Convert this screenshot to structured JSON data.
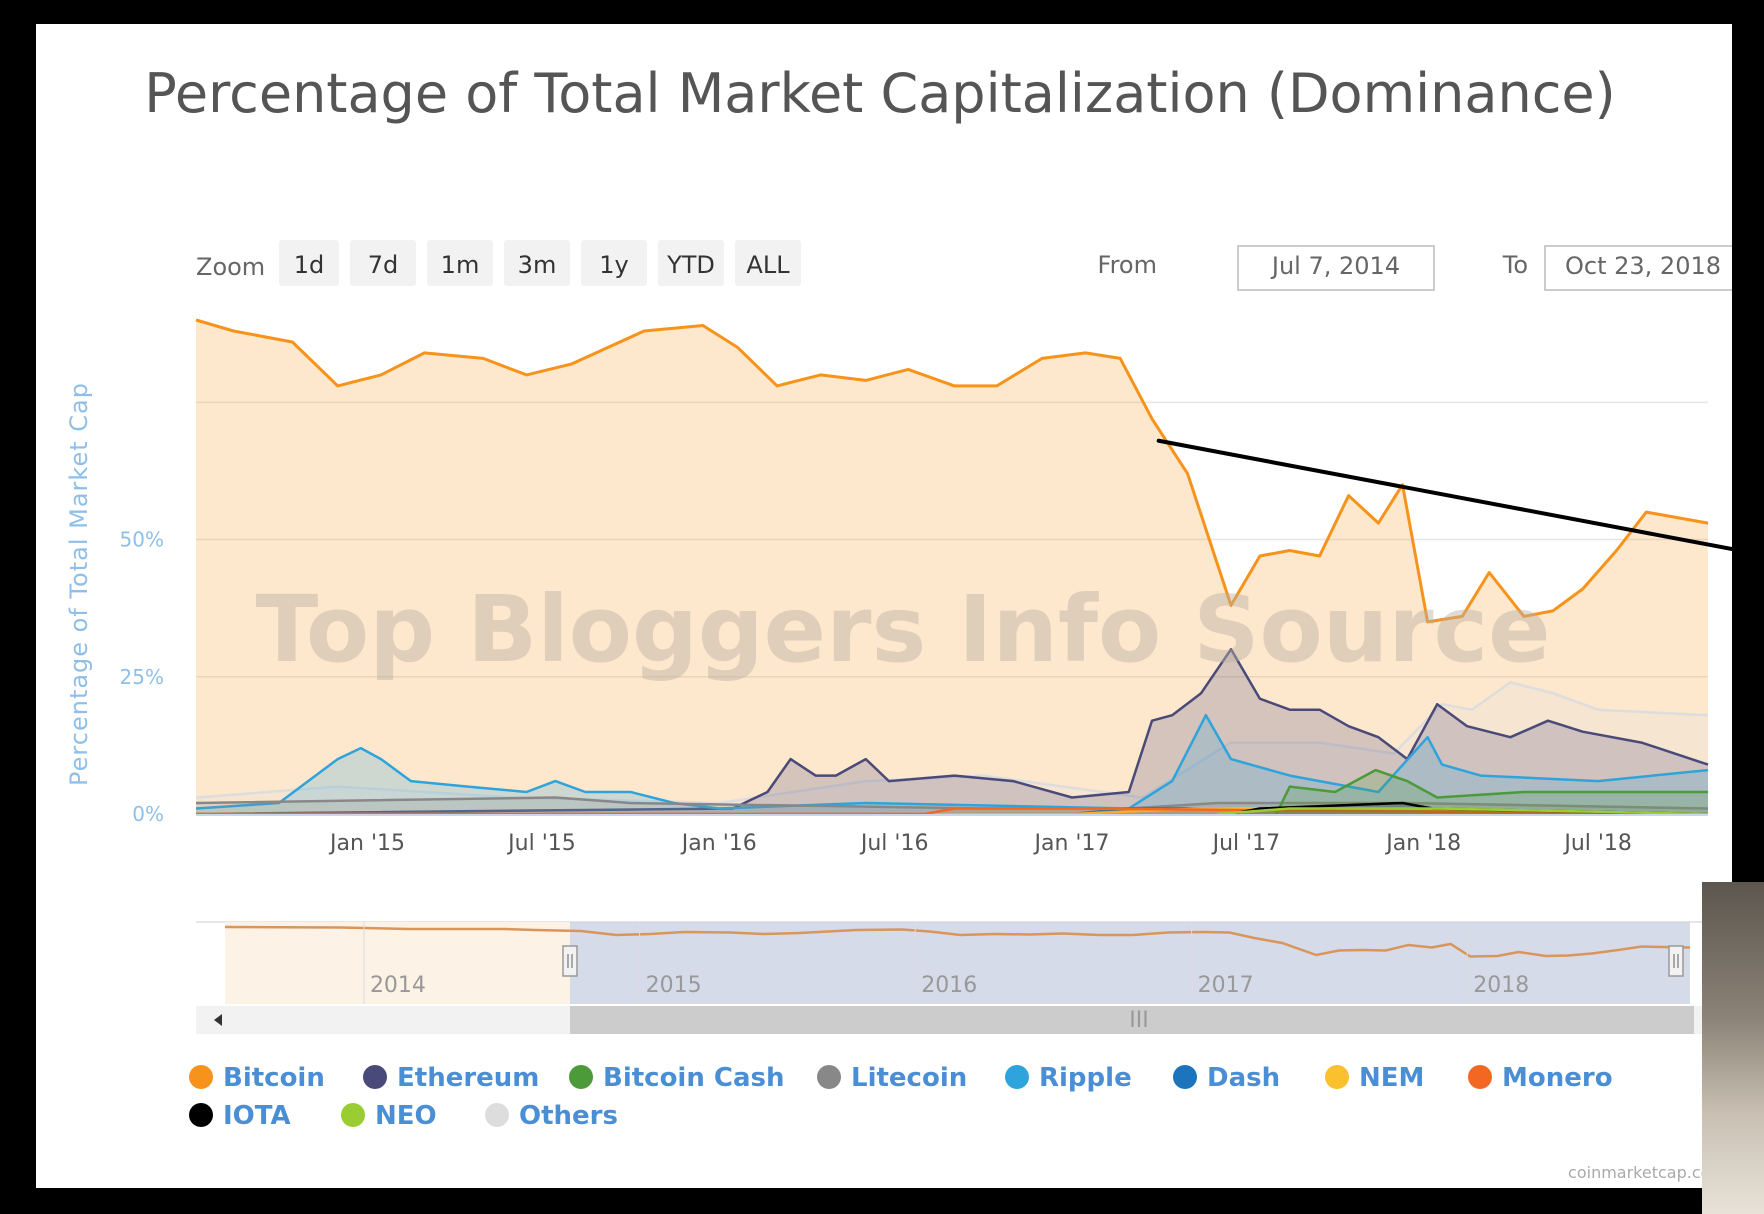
{
  "chart_data": {
    "type": "area",
    "title": "Percentage of Total Market Capitalization (Dominance)",
    "ylabel": "Percentage of Total Market Cap",
    "yticks": [
      "0%",
      "25%",
      "50%"
    ],
    "ylim": [
      0,
      90
    ],
    "xlim": [
      "2014-07-07",
      "2018-10-23"
    ],
    "xticks": [
      {
        "label": "Jan '15",
        "date": "2015-01-01"
      },
      {
        "label": "Jul '15",
        "date": "2015-07-01"
      },
      {
        "label": "Jan '16",
        "date": "2016-01-01"
      },
      {
        "label": "Jul '16",
        "date": "2016-07-01"
      },
      {
        "label": "Jan '17",
        "date": "2017-01-01"
      },
      {
        "label": "Jul '17",
        "date": "2017-07-01"
      },
      {
        "label": "Jan '18",
        "date": "2018-01-01"
      },
      {
        "label": "Jul '18",
        "date": "2018-07-01"
      }
    ],
    "grid": true,
    "legend_position": "bottom",
    "series": [
      {
        "name": "Bitcoin",
        "color": "#f7931a",
        "points": [
          [
            "2014-07-07",
            90
          ],
          [
            "2014-08-15",
            88
          ],
          [
            "2014-10-15",
            86
          ],
          [
            "2014-12-01",
            78
          ],
          [
            "2015-01-15",
            80
          ],
          [
            "2015-03-01",
            84
          ],
          [
            "2015-05-01",
            83
          ],
          [
            "2015-06-15",
            80
          ],
          [
            "2015-08-01",
            82
          ],
          [
            "2015-10-15",
            88
          ],
          [
            "2015-12-15",
            89
          ],
          [
            "2016-01-20",
            85
          ],
          [
            "2016-03-01",
            78
          ],
          [
            "2016-04-15",
            80
          ],
          [
            "2016-06-01",
            79
          ],
          [
            "2016-07-15",
            81
          ],
          [
            "2016-09-01",
            78
          ],
          [
            "2016-10-15",
            78
          ],
          [
            "2016-12-01",
            83
          ],
          [
            "2017-01-15",
            84
          ],
          [
            "2017-02-20",
            83
          ],
          [
            "2017-03-25",
            72
          ],
          [
            "2017-05-01",
            62
          ],
          [
            "2017-06-15",
            38
          ],
          [
            "2017-07-15",
            47
          ],
          [
            "2017-08-15",
            48
          ],
          [
            "2017-09-15",
            47
          ],
          [
            "2017-10-15",
            58
          ],
          [
            "2017-11-15",
            53
          ],
          [
            "2017-12-10",
            60
          ],
          [
            "2018-01-05",
            35
          ],
          [
            "2018-02-10",
            36
          ],
          [
            "2018-03-10",
            44
          ],
          [
            "2018-04-15",
            36
          ],
          [
            "2018-05-15",
            37
          ],
          [
            "2018-06-15",
            41
          ],
          [
            "2018-07-20",
            48
          ],
          [
            "2018-08-20",
            55
          ],
          [
            "2018-10-23",
            53
          ]
        ]
      },
      {
        "name": "Ethereum",
        "color": "#4a4a7a",
        "points": [
          [
            "2014-07-07",
            0
          ],
          [
            "2016-01-15",
            1
          ],
          [
            "2016-02-20",
            4
          ],
          [
            "2016-03-15",
            10
          ],
          [
            "2016-04-10",
            7
          ],
          [
            "2016-05-01",
            7
          ],
          [
            "2016-06-01",
            10
          ],
          [
            "2016-06-25",
            6
          ],
          [
            "2016-09-01",
            7
          ],
          [
            "2016-11-01",
            6
          ],
          [
            "2017-01-01",
            3
          ],
          [
            "2017-03-01",
            4
          ],
          [
            "2017-03-25",
            17
          ],
          [
            "2017-04-15",
            18
          ],
          [
            "2017-05-15",
            22
          ],
          [
            "2017-06-15",
            30
          ],
          [
            "2017-07-15",
            21
          ],
          [
            "2017-08-15",
            19
          ],
          [
            "2017-09-15",
            19
          ],
          [
            "2017-10-15",
            16
          ],
          [
            "2017-11-15",
            14
          ],
          [
            "2017-12-15",
            10
          ],
          [
            "2018-01-15",
            20
          ],
          [
            "2018-02-15",
            16
          ],
          [
            "2018-04-01",
            14
          ],
          [
            "2018-05-10",
            17
          ],
          [
            "2018-06-15",
            15
          ],
          [
            "2018-08-15",
            13
          ],
          [
            "2018-10-23",
            9
          ]
        ]
      },
      {
        "name": "Bitcoin Cash",
        "color": "#4c9a3a",
        "points": [
          [
            "2017-08-01",
            0
          ],
          [
            "2017-08-15",
            5
          ],
          [
            "2017-10-01",
            4
          ],
          [
            "2017-11-12",
            8
          ],
          [
            "2017-12-15",
            6
          ],
          [
            "2018-01-15",
            3
          ],
          [
            "2018-04-15",
            4
          ],
          [
            "2018-10-23",
            4
          ]
        ]
      },
      {
        "name": "Litecoin",
        "color": "#888888",
        "points": [
          [
            "2014-07-07",
            2
          ],
          [
            "2015-07-15",
            3
          ],
          [
            "2015-10-01",
            2
          ],
          [
            "2016-10-01",
            1
          ],
          [
            "2017-03-01",
            1
          ],
          [
            "2017-06-01",
            2
          ],
          [
            "2017-12-15",
            2
          ],
          [
            "2018-10-23",
            1
          ]
        ]
      },
      {
        "name": "Ripple",
        "color": "#2fa3db",
        "points": [
          [
            "2014-07-07",
            1
          ],
          [
            "2014-10-01",
            2
          ],
          [
            "2014-12-01",
            10
          ],
          [
            "2014-12-25",
            12
          ],
          [
            "2015-01-15",
            10
          ],
          [
            "2015-02-15",
            6
          ],
          [
            "2015-04-15",
            5
          ],
          [
            "2015-06-15",
            4
          ],
          [
            "2015-07-15",
            6
          ],
          [
            "2015-08-15",
            4
          ],
          [
            "2015-10-01",
            4
          ],
          [
            "2015-11-15",
            2
          ],
          [
            "2016-01-01",
            1
          ],
          [
            "2016-06-01",
            2
          ],
          [
            "2017-03-01",
            1
          ],
          [
            "2017-04-15",
            6
          ],
          [
            "2017-05-20",
            18
          ],
          [
            "2017-06-15",
            10
          ],
          [
            "2017-08-15",
            7
          ],
          [
            "2017-11-15",
            4
          ],
          [
            "2018-01-05",
            14
          ],
          [
            "2018-01-20",
            9
          ],
          [
            "2018-03-01",
            7
          ],
          [
            "2018-07-01",
            6
          ],
          [
            "2018-10-23",
            8
          ]
        ]
      },
      {
        "name": "Dash",
        "color": "#1c75bc",
        "points": [
          [
            "2014-07-07",
            0
          ],
          [
            "2017-01-01",
            0
          ],
          [
            "2017-03-01",
            1
          ],
          [
            "2017-06-01",
            1
          ],
          [
            "2018-10-23",
            0
          ]
        ]
      },
      {
        "name": "NEM",
        "color": "#fbc02d",
        "points": [
          [
            "2014-07-07",
            0
          ],
          [
            "2017-01-01",
            0
          ],
          [
            "2017-05-15",
            1
          ],
          [
            "2017-09-01",
            1
          ],
          [
            "2018-10-23",
            0
          ]
        ]
      },
      {
        "name": "Monero",
        "color": "#f26822",
        "points": [
          [
            "2014-07-07",
            0
          ],
          [
            "2016-08-01",
            0
          ],
          [
            "2016-09-01",
            1
          ],
          [
            "2017-01-01",
            1
          ],
          [
            "2018-10-23",
            0
          ]
        ]
      },
      {
        "name": "IOTA",
        "color": "#000000",
        "points": [
          [
            "2017-06-15",
            0
          ],
          [
            "2017-07-15",
            1
          ],
          [
            "2017-12-10",
            2
          ],
          [
            "2018-01-10",
            1
          ],
          [
            "2018-10-23",
            0
          ]
        ]
      },
      {
        "name": "NEO",
        "color": "#9acd32",
        "points": [
          [
            "2017-06-01",
            0
          ],
          [
            "2017-08-15",
            1
          ],
          [
            "2018-01-15",
            1
          ],
          [
            "2018-10-23",
            0
          ]
        ]
      },
      {
        "name": "Others",
        "color": "#dddddd",
        "points": [
          [
            "2014-07-07",
            3
          ],
          [
            "2014-12-01",
            5
          ],
          [
            "2015-06-01",
            3
          ],
          [
            "2016-01-01",
            2
          ],
          [
            "2016-06-01",
            6
          ],
          [
            "2016-10-01",
            7
          ],
          [
            "2017-03-15",
            3
          ],
          [
            "2017-06-15",
            13
          ],
          [
            "2017-09-15",
            13
          ],
          [
            "2017-12-01",
            11
          ],
          [
            "2018-01-20",
            20
          ],
          [
            "2018-02-20",
            19
          ],
          [
            "2018-04-01",
            24
          ],
          [
            "2018-05-15",
            22
          ],
          [
            "2018-07-01",
            19
          ],
          [
            "2018-10-23",
            18
          ]
        ]
      }
    ],
    "annotations": [
      {
        "type": "trendline",
        "color": "#000000",
        "from": [
          "2017-04-01",
          68
        ],
        "to": [
          "2018-10-23",
          49
        ]
      }
    ]
  },
  "zoom": {
    "label": "Zoom",
    "buttons": [
      "1d",
      "7d",
      "1m",
      "3m",
      "1y",
      "YTD",
      "ALL"
    ]
  },
  "range": {
    "from_label": "From",
    "from_value": "Jul 7, 2014",
    "to_label": "To",
    "to_value": "Oct 23, 2018"
  },
  "navigator": {
    "years": [
      "2014",
      "2015",
      "2016",
      "2017",
      "2018"
    ],
    "scroll_grip": "III"
  },
  "watermark": "Top Bloggers Info Source",
  "credit": "coinmarketcap.com"
}
